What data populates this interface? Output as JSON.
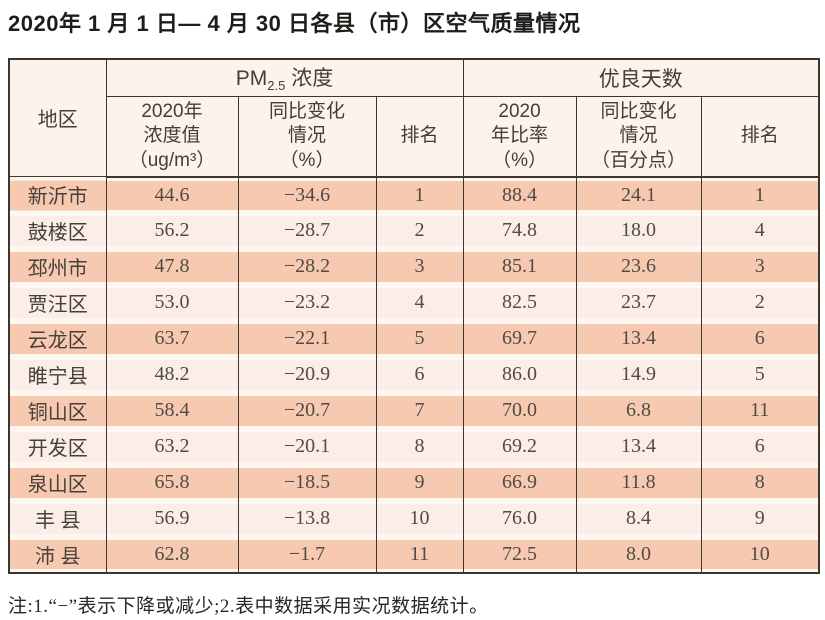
{
  "title": "2020年 1 月 1 日— 4 月 30 日各县（市）区空气质量情况",
  "table": {
    "header": {
      "region": "地区",
      "pm_group": {
        "prefix": "PM",
        "sub": "2.5",
        "suffix": " 浓度"
      },
      "days_group": "优良天数",
      "pm_cols": {
        "value": "2020年\n浓度值\n（ug/m³）",
        "change": "同比变化\n情况\n（%）",
        "rank": "排名"
      },
      "days_cols": {
        "rate": "2020\n年比率\n（%）",
        "change": "同比变化\n情况\n（百分点）",
        "rank": "排名"
      }
    },
    "rows": [
      {
        "region": "新沂市",
        "pm_value": "44.6",
        "pm_change": "−34.6",
        "pm_rank": "1",
        "rate": "88.4",
        "rate_change": "24.1",
        "rate_rank": "1"
      },
      {
        "region": "鼓楼区",
        "pm_value": "56.2",
        "pm_change": "−28.7",
        "pm_rank": "2",
        "rate": "74.8",
        "rate_change": "18.0",
        "rate_rank": "4"
      },
      {
        "region": "邳州市",
        "pm_value": "47.8",
        "pm_change": "−28.2",
        "pm_rank": "3",
        "rate": "85.1",
        "rate_change": "23.6",
        "rate_rank": "3"
      },
      {
        "region": "贾汪区",
        "pm_value": "53.0",
        "pm_change": "−23.2",
        "pm_rank": "4",
        "rate": "82.5",
        "rate_change": "23.7",
        "rate_rank": "2"
      },
      {
        "region": "云龙区",
        "pm_value": "63.7",
        "pm_change": "−22.1",
        "pm_rank": "5",
        "rate": "69.7",
        "rate_change": "13.4",
        "rate_rank": "6"
      },
      {
        "region": "睢宁县",
        "pm_value": "48.2",
        "pm_change": "−20.9",
        "pm_rank": "6",
        "rate": "86.0",
        "rate_change": "14.9",
        "rate_rank": "5"
      },
      {
        "region": "铜山区",
        "pm_value": "58.4",
        "pm_change": "−20.7",
        "pm_rank": "7",
        "rate": "70.0",
        "rate_change": "6.8",
        "rate_rank": "11"
      },
      {
        "region": "开发区",
        "pm_value": "63.2",
        "pm_change": "−20.1",
        "pm_rank": "8",
        "rate": "69.2",
        "rate_change": "13.4",
        "rate_rank": "6"
      },
      {
        "region": "泉山区",
        "pm_value": "65.8",
        "pm_change": "−18.5",
        "pm_rank": "9",
        "rate": "66.9",
        "rate_change": "11.8",
        "rate_rank": "8"
      },
      {
        "region": "丰 县",
        "pm_value": "56.9",
        "pm_change": "−13.8",
        "pm_rank": "10",
        "rate": "76.0",
        "rate_change": "8.4",
        "rate_rank": "9"
      },
      {
        "region": "沛 县",
        "pm_value": "62.8",
        "pm_change": "−1.7",
        "pm_rank": "11",
        "rate": "72.5",
        "rate_change": "8.0",
        "rate_rank": "10"
      }
    ]
  },
  "note": "注:1.“−”表示下降或减少;2.表中数据采用实况数据统计。",
  "colors": {
    "row_odd": "#f8c9b1",
    "row_even": "#fbeee7",
    "row_gap": "#fdf6f1",
    "header_bg": "#fdf3ea",
    "border": "#3c3631",
    "text": "#4a443d"
  }
}
